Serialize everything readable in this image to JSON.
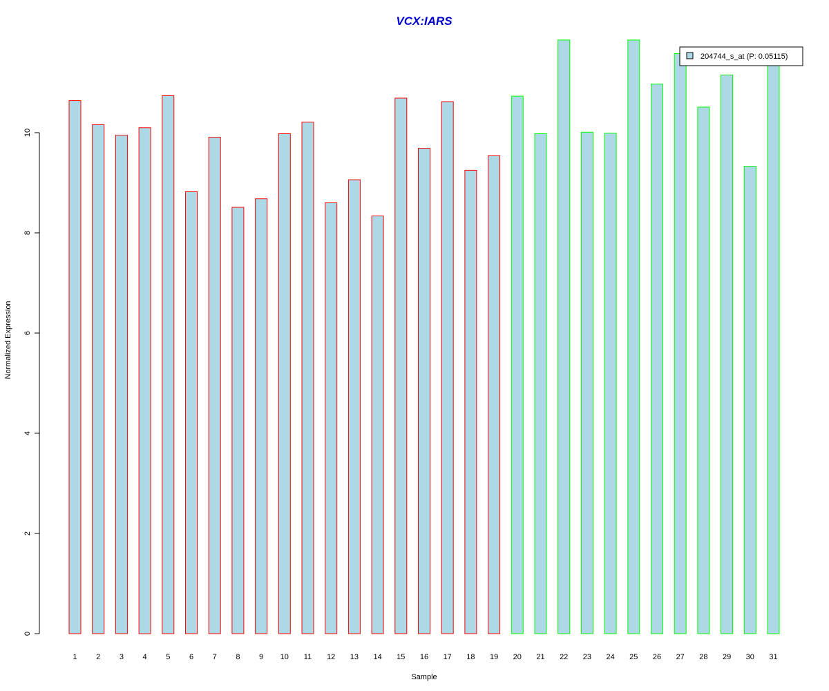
{
  "chart_data": {
    "type": "bar",
    "title": "VCX:IARS",
    "xlabel": "Sample",
    "ylabel": "Normalized Expression",
    "ylim": [
      0,
      11.85
    ],
    "yticks": [
      "0",
      "2",
      "4",
      "6",
      "8",
      "10"
    ],
    "categories": [
      "1",
      "2",
      "3",
      "4",
      "5",
      "6",
      "7",
      "8",
      "9",
      "10",
      "11",
      "12",
      "13",
      "14",
      "15",
      "16",
      "17",
      "18",
      "19",
      "20",
      "21",
      "22",
      "23",
      "24",
      "25",
      "26",
      "27",
      "28",
      "29",
      "30",
      "31"
    ],
    "series": [
      {
        "name": "204744_s_at (P: 0.05115)",
        "values": [
          10.64,
          10.16,
          9.95,
          10.1,
          10.74,
          8.82,
          9.91,
          8.51,
          8.68,
          9.98,
          10.21,
          8.6,
          9.06,
          8.34,
          10.69,
          9.69,
          10.62,
          9.25,
          9.54,
          10.73,
          9.98,
          11.85,
          10.01,
          9.99,
          11.85,
          10.97,
          11.58,
          10.51,
          11.15,
          9.33,
          11.5
        ]
      }
    ],
    "groups": [
      "red",
      "red",
      "red",
      "red",
      "red",
      "red",
      "red",
      "red",
      "red",
      "red",
      "red",
      "red",
      "red",
      "red",
      "red",
      "red",
      "red",
      "red",
      "red",
      "green",
      "green",
      "green",
      "green",
      "green",
      "green",
      "green",
      "green",
      "green",
      "green",
      "green",
      "green"
    ],
    "colors": {
      "fill": "#ADD8E6",
      "red": "#FF0000",
      "green": "#00FF00",
      "title": "#0000CC"
    },
    "legend": {
      "label": "204744_s_at (P: 0.05115)",
      "position": "top-right"
    },
    "grid": false
  }
}
